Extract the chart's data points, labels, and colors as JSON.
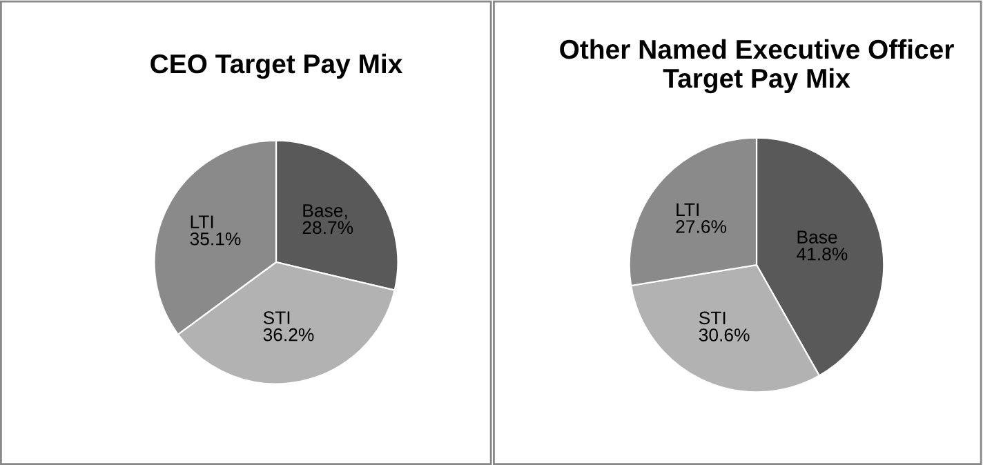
{
  "chart_data": [
    {
      "type": "pie",
      "title": "CEO Target Pay Mix",
      "categories": [
        "Base",
        "STI",
        "LTI"
      ],
      "values": [
        28.7,
        36.2,
        35.1
      ],
      "value_labels": [
        ", 28.7%",
        "36.2%",
        "35.1%"
      ],
      "colors": [
        "#595959",
        "#b2b2b2",
        "#8a8a8a"
      ]
    },
    {
      "type": "pie",
      "title": "Other Named Executive Officer Target Pay Mix",
      "categories": [
        "Base",
        "STI",
        "LTI"
      ],
      "values": [
        41.8,
        30.6,
        27.6
      ],
      "value_labels": [
        "41.8%",
        "30.6%",
        "27.6%"
      ],
      "colors": [
        "#595959",
        "#b2b2b2",
        "#8a8a8a"
      ]
    }
  ]
}
